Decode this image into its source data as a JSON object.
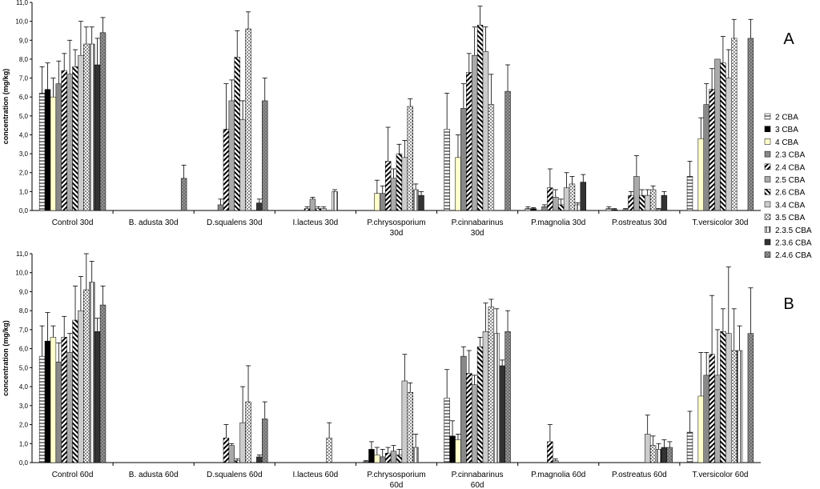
{
  "chart_data": [
    {
      "type": "bar",
      "panel_label": "A",
      "ylabel": "concentration (mg/kg)",
      "ylim": [
        0,
        11
      ],
      "yticks": [
        "0,0",
        "1,0",
        "2,0",
        "3,0",
        "4,0",
        "5,0",
        "6,0",
        "7,0",
        "8,0",
        "9,0",
        "10,0",
        "11,0"
      ],
      "grid": false,
      "legend": "right",
      "categories": [
        [
          "Control 30d"
        ],
        [
          "B. adusta 30d"
        ],
        [
          "D.squalens 30d"
        ],
        [
          "I.lacteus 30d"
        ],
        [
          "P.chrysosporium",
          "30d"
        ],
        [
          "P.cinnabarinus",
          "30d"
        ],
        [
          "P.magnolia 30d"
        ],
        [
          "P.ostreatus 30d"
        ],
        [
          "T.versicolor 30d"
        ]
      ],
      "series": [
        {
          "name": "2 CBA",
          "values": [
            6.2,
            0,
            0,
            0,
            0,
            4.3,
            0.1,
            0.1,
            1.8
          ],
          "errors": [
            1.4,
            0,
            0,
            0,
            0,
            1.9,
            0.1,
            0.1,
            0.8
          ]
        },
        {
          "name": "3 CBA",
          "values": [
            6.4,
            0,
            0,
            0,
            0,
            0,
            0.1,
            0.05,
            0
          ],
          "errors": [
            1.4,
            0,
            0,
            0,
            0,
            0,
            0.05,
            0.05,
            0
          ]
        },
        {
          "name": "4 CBA",
          "values": [
            6.0,
            0,
            0,
            0,
            0.9,
            2.8,
            0,
            0,
            3.8
          ],
          "errors": [
            1.0,
            0,
            0,
            0,
            0.7,
            1.2,
            0,
            0,
            1.1
          ]
        },
        {
          "name": "2.3 CBA",
          "values": [
            6.7,
            0,
            0.3,
            0,
            0.9,
            5.4,
            0.2,
            0.05,
            5.6
          ],
          "errors": [
            1.2,
            0,
            0.3,
            0,
            0.4,
            1.3,
            0.1,
            0.05,
            1.1
          ]
        },
        {
          "name": "2.4 CBA",
          "values": [
            7.4,
            0,
            4.3,
            0.1,
            2.6,
            7.3,
            1.2,
            0.8,
            6.4
          ],
          "errors": [
            0.9,
            0,
            2.4,
            0.1,
            1.8,
            1.0,
            1.0,
            0.2,
            1.1
          ]
        },
        {
          "name": "2.5 CBA",
          "values": [
            7.2,
            0,
            5.8,
            0.6,
            1.7,
            8.2,
            0.7,
            1.8,
            8.0
          ],
          "errors": [
            1.8,
            0,
            1.1,
            0.1,
            0.5,
            1.5,
            0.4,
            1.1,
            0
          ]
        },
        {
          "name": "2.6 CBA",
          "values": [
            7.6,
            0,
            8.1,
            0.1,
            3.0,
            9.8,
            0.3,
            0.8,
            7.8
          ],
          "errors": [
            0.9,
            0,
            1.4,
            0.1,
            0.5,
            1.0,
            0.3,
            0.3,
            1.4
          ]
        },
        {
          "name": "3.4 CBA",
          "values": [
            8.2,
            0,
            4.8,
            0.1,
            2.8,
            8.4,
            1.2,
            0.8,
            7.0
          ],
          "errors": [
            1.8,
            0,
            1.0,
            0.1,
            0.9,
            1.3,
            0.8,
            0.3,
            1.5
          ]
        },
        {
          "name": "3.5 CBA",
          "values": [
            8.8,
            0,
            9.6,
            0,
            5.5,
            5.6,
            1.4,
            1.1,
            9.1
          ],
          "errors": [
            0.9,
            0,
            0.9,
            0,
            0.4,
            1.6,
            0.4,
            0.2,
            1.0
          ]
        },
        {
          "name": "2.3.5 CBA",
          "values": [
            8.8,
            0,
            0,
            1.0,
            1.1,
            0,
            0.3,
            0.05,
            0
          ],
          "errors": [
            0.9,
            0,
            0,
            0.1,
            0.3,
            0,
            0.1,
            0.05,
            0
          ]
        },
        {
          "name": "2.3.6 CBA",
          "values": [
            7.7,
            0,
            0.4,
            0,
            0.8,
            0,
            1.5,
            0.8,
            0
          ],
          "errors": [
            1.4,
            0,
            0.2,
            0,
            0.2,
            0,
            0.4,
            0.2,
            0
          ]
        },
        {
          "name": "2.4.6 CBA",
          "values": [
            9.4,
            1.7,
            5.8,
            0,
            0,
            6.3,
            0,
            0,
            9.1
          ],
          "errors": [
            0.8,
            0.7,
            1.2,
            0,
            0,
            1.4,
            0,
            0,
            1.0
          ]
        }
      ]
    },
    {
      "type": "bar",
      "panel_label": "B",
      "ylabel": "concentration (mg/kg)",
      "ylim": [
        0,
        11
      ],
      "yticks": [
        "0,0",
        "1,0",
        "2,0",
        "3,0",
        "4,0",
        "5,0",
        "6,0",
        "7,0",
        "8,0",
        "9,0",
        "10,0",
        "11,0"
      ],
      "grid": false,
      "legend": "right",
      "categories": [
        [
          "Control 60d"
        ],
        [
          "B. adusta 60d"
        ],
        [
          "D.squalens 60d"
        ],
        [
          "I.lacteus 60d"
        ],
        [
          "P.chrysosporium",
          "60d"
        ],
        [
          "P.cinnabarinus",
          "60d"
        ],
        [
          "P.magnolia 60d"
        ],
        [
          "P.ostreatus 60d"
        ],
        [
          "T.versicolor 60d"
        ]
      ],
      "series": [
        {
          "name": "2 CBA",
          "values": [
            5.6,
            0,
            0,
            0,
            0.05,
            3.4,
            0,
            0,
            1.6
          ],
          "errors": [
            1.6,
            0,
            0,
            0,
            0.05,
            1.5,
            0,
            0,
            1.1
          ]
        },
        {
          "name": "3 CBA",
          "values": [
            6.4,
            0,
            0,
            0,
            0.7,
            1.4,
            0,
            0,
            0
          ],
          "errors": [
            1.5,
            0,
            0,
            0,
            0.4,
            0.8,
            0,
            0,
            0
          ]
        },
        {
          "name": "4 CBA",
          "values": [
            6.6,
            0,
            0,
            0,
            0.4,
            1.2,
            0,
            0,
            3.5
          ],
          "errors": [
            0.6,
            0,
            0,
            0,
            0.4,
            0.3,
            0,
            0,
            2.3
          ]
        },
        {
          "name": "2.3 CBA",
          "values": [
            5.3,
            0,
            0,
            0,
            0.3,
            5.6,
            0,
            0,
            4.6
          ],
          "errors": [
            1.0,
            0,
            0,
            0,
            0.4,
            0.5,
            0,
            0,
            1.2
          ]
        },
        {
          "name": "2.4 CBA",
          "values": [
            6.6,
            0,
            1.3,
            0,
            0.5,
            4.7,
            1.1,
            0,
            5.7
          ],
          "errors": [
            1.1,
            0,
            0.7,
            0,
            0.3,
            1.2,
            0.9,
            0,
            3.1
          ]
        },
        {
          "name": "2.5 CBA",
          "values": [
            5.8,
            0,
            0.9,
            0,
            0.6,
            4.1,
            0.1,
            0,
            4.6
          ],
          "errors": [
            1.0,
            0,
            0.1,
            0,
            0.3,
            0.5,
            0.1,
            0,
            2.4
          ]
        },
        {
          "name": "2.6 CBA",
          "values": [
            7.5,
            0,
            0.1,
            0,
            0.4,
            6.1,
            0,
            0,
            6.9
          ],
          "errors": [
            1.8,
            0,
            0.1,
            0,
            0.3,
            0.5,
            0,
            0,
            1.2
          ]
        },
        {
          "name": "3.4 CBA",
          "values": [
            8.0,
            0,
            2.1,
            0,
            4.3,
            6.9,
            0,
            1.5,
            6.8
          ],
          "errors": [
            1.8,
            0,
            1.9,
            0,
            1.4,
            1.5,
            0,
            1.0,
            3.5
          ]
        },
        {
          "name": "3.5 CBA",
          "values": [
            9.1,
            0,
            3.2,
            1.3,
            3.7,
            8.2,
            0,
            0.9,
            5.9
          ],
          "errors": [
            1.9,
            0,
            1.9,
            0.8,
            0.5,
            0.4,
            0,
            0.5,
            2.2
          ]
        },
        {
          "name": "2.3.5 CBA",
          "values": [
            9.5,
            0,
            0,
            0,
            0.8,
            6.8,
            0,
            0.7,
            5.9
          ],
          "errors": [
            1.1,
            0,
            0,
            0,
            0.7,
            1.3,
            0,
            0.3,
            1.3
          ]
        },
        {
          "name": "2.3.6 CBA",
          "values": [
            6.9,
            0,
            0.3,
            0,
            0,
            5.1,
            0,
            0.8,
            0
          ],
          "errors": [
            0.7,
            0,
            0.1,
            0,
            0,
            0.3,
            0,
            0.4,
            0
          ]
        },
        {
          "name": "2.4.6 CBA",
          "values": [
            8.3,
            0,
            2.3,
            0,
            0,
            6.9,
            0,
            0.8,
            6.8
          ],
          "errors": [
            1.0,
            0,
            0.9,
            0,
            0,
            1.1,
            0,
            0.3,
            2.4
          ]
        }
      ]
    }
  ]
}
